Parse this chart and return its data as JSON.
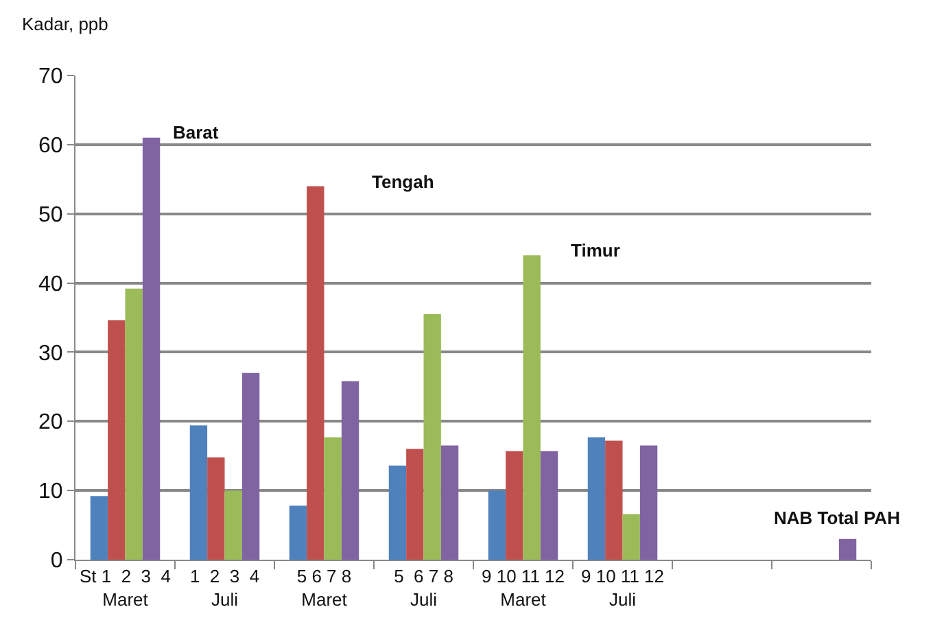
{
  "chart_data": {
    "type": "bar",
    "ylabel": "Kadar, ppb",
    "categories": [
      "St 1  2  3  4\nMaret",
      "1  2  3  4\nJuli",
      "5 6 7 8\nMaret",
      "5  6 7 8\nJuli",
      "9 10 11 12\nMaret",
      "9 10 11 12\nJuli",
      null,
      null
    ],
    "series": [
      {
        "color": "#4f81bd",
        "values": [
          9.2,
          19.4,
          7.8,
          13.6,
          10,
          17.7,
          null,
          null
        ]
      },
      {
        "color": "#c0504d",
        "values": [
          34.6,
          14.8,
          54,
          16,
          15.7,
          17.2,
          null,
          null
        ]
      },
      {
        "color": "#9bbb59",
        "values": [
          39.2,
          10,
          17.7,
          35.5,
          44,
          6.6,
          null,
          null
        ]
      },
      {
        "color": "#8064a2",
        "values": [
          61,
          27,
          25.8,
          16.5,
          15.7,
          16.5,
          null,
          3
        ]
      }
    ],
    "annotations": [
      "Barat",
      "Tengah",
      "Timur",
      "NAB Total PAH"
    ],
    "ylim": [
      0,
      70
    ],
    "yticks": [
      0,
      10,
      20,
      30,
      40,
      50,
      60,
      70
    ],
    "grid": "y"
  }
}
